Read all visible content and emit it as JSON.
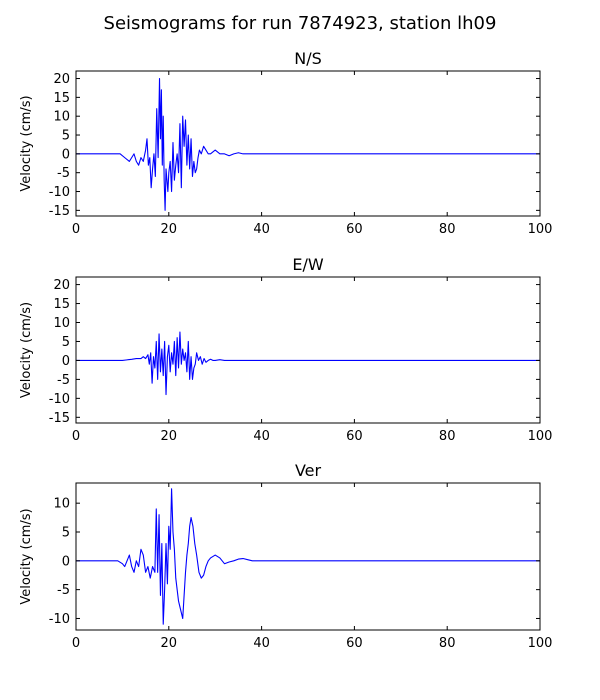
{
  "figure_title": "Seismograms for run 7874923, station lh09",
  "line_color": "#0000ff",
  "chart_data": [
    {
      "type": "line",
      "title": "N/S",
      "xlabel": "",
      "ylabel": "Velocity (cm/s)",
      "xlim": [
        0,
        100
      ],
      "ylim": [
        -16.5,
        22
      ],
      "xticks": [
        0,
        20,
        40,
        60,
        80,
        100
      ],
      "yticks": [
        -15,
        -10,
        -5,
        0,
        5,
        10,
        15,
        20
      ],
      "grid": false,
      "series": [
        {
          "x": [
            0,
            9.5,
            10.5,
            11.5,
            12,
            12.5,
            13,
            13.5,
            14,
            14.5,
            15,
            15.3,
            15.6,
            15.9,
            16.2,
            16.5,
            16.8,
            17.1,
            17.4,
            17.7,
            18,
            18.2,
            18.4,
            18.6,
            18.8,
            19,
            19.2,
            19.4,
            19.6,
            19.8,
            20,
            20.3,
            20.6,
            20.9,
            21.2,
            21.5,
            21.8,
            22.1,
            22.4,
            22.7,
            23,
            23.3,
            23.6,
            23.9,
            24.2,
            24.5,
            24.8,
            25.1,
            25.4,
            25.7,
            26,
            26.3,
            26.6,
            27,
            27.5,
            28,
            28.5,
            29,
            30,
            31,
            32,
            33,
            34,
            35,
            36,
            38,
            45,
            100
          ],
          "y": [
            0,
            0,
            -1,
            -2,
            -1,
            0,
            -2,
            -3,
            -1,
            -2,
            1,
            4,
            -3,
            -1,
            -9,
            -4,
            0,
            -6,
            12,
            -1,
            20,
            4,
            17,
            -3,
            10,
            -7,
            -15,
            -4,
            -7,
            -10,
            -5,
            -2,
            -10,
            3,
            -7,
            -3,
            0,
            -5,
            8,
            -9,
            10,
            2,
            9,
            -3,
            5,
            -4,
            4,
            -6,
            -2,
            -5,
            -4,
            -1,
            1,
            0,
            2,
            1,
            0,
            0,
            1,
            0,
            0,
            -0.5,
            0,
            0.3,
            0,
            0,
            0,
            0
          ]
        }
      ]
    },
    {
      "type": "line",
      "title": "E/W",
      "xlabel": "",
      "ylabel": "Velocity (cm/s)",
      "xlim": [
        0,
        100
      ],
      "ylim": [
        -16.5,
        22
      ],
      "xticks": [
        0,
        20,
        40,
        60,
        80,
        100
      ],
      "yticks": [
        -15,
        -10,
        -5,
        0,
        5,
        10,
        15,
        20
      ],
      "grid": false,
      "series": [
        {
          "x": [
            0,
            10,
            12,
            13,
            14,
            14.5,
            15,
            15.5,
            15.8,
            16.1,
            16.4,
            16.7,
            17,
            17.3,
            17.6,
            17.9,
            18.2,
            18.5,
            18.8,
            19.1,
            19.4,
            19.7,
            20,
            20.3,
            20.6,
            20.9,
            21.2,
            21.5,
            21.8,
            22.1,
            22.4,
            22.7,
            23,
            23.3,
            23.6,
            23.9,
            24.2,
            24.5,
            24.8,
            25.1,
            25.4,
            25.7,
            26,
            26.4,
            26.8,
            27.2,
            27.6,
            28,
            28.5,
            29,
            29.5,
            30,
            31,
            32,
            34,
            36,
            100
          ],
          "y": [
            0,
            0,
            0.3,
            0.5,
            0.5,
            1,
            0.5,
            1.5,
            -1,
            2,
            -6,
            1,
            -2,
            5,
            -5,
            7,
            -3,
            3,
            -4,
            5,
            -9,
            1,
            4,
            -3,
            2,
            -1,
            5,
            -4,
            6,
            -2,
            7.5,
            -1,
            3,
            0,
            2,
            -3,
            5,
            -5,
            1,
            -5,
            -2,
            -1,
            2,
            0,
            1,
            -1,
            0.5,
            -0.5,
            0,
            0.3,
            0,
            0,
            0.2,
            0,
            0,
            0,
            0
          ]
        }
      ]
    },
    {
      "type": "line",
      "title": "Ver",
      "xlabel": "",
      "ylabel": "Velocity (cm/s)",
      "xlim": [
        0,
        100
      ],
      "ylim": [
        -12,
        13.5
      ],
      "xticks": [
        0,
        20,
        40,
        60,
        80,
        100
      ],
      "yticks": [
        -10,
        -5,
        0,
        5,
        10
      ],
      "grid": false,
      "series": [
        {
          "x": [
            0,
            9,
            10,
            10.5,
            11,
            11.5,
            12,
            12.5,
            13,
            13.5,
            14,
            14.5,
            15,
            15.5,
            16,
            16.5,
            17,
            17.3,
            17.6,
            17.9,
            18.2,
            18.5,
            18.8,
            19.1,
            19.4,
            19.7,
            20,
            20.3,
            20.6,
            20.9,
            21.2,
            21.5,
            21.8,
            22.1,
            22.4,
            22.7,
            23,
            23.3,
            23.6,
            23.9,
            24.2,
            24.5,
            24.8,
            25.2,
            25.6,
            26,
            26.5,
            27,
            27.5,
            28,
            28.5,
            29,
            30,
            31,
            32,
            33,
            34,
            35,
            36,
            37,
            38,
            40,
            45,
            100
          ],
          "y": [
            0,
            0,
            -0.5,
            -1,
            0,
            1,
            -1,
            -2,
            0,
            -1,
            2,
            1,
            -2,
            -1,
            -3,
            -1,
            -2,
            9,
            -2,
            8,
            -6,
            3,
            -11,
            -5,
            3,
            -4,
            6,
            2,
            12.5,
            5,
            2,
            -3,
            -5,
            -7,
            -8,
            -9,
            -10,
            -6,
            -2,
            1,
            3,
            6,
            7.5,
            6,
            3,
            1,
            -2,
            -3,
            -2.5,
            -1,
            0,
            0.5,
            1,
            0.5,
            -0.5,
            -0.2,
            0,
            0.3,
            0.4,
            0.2,
            0,
            0,
            0,
            0
          ]
        }
      ]
    }
  ]
}
